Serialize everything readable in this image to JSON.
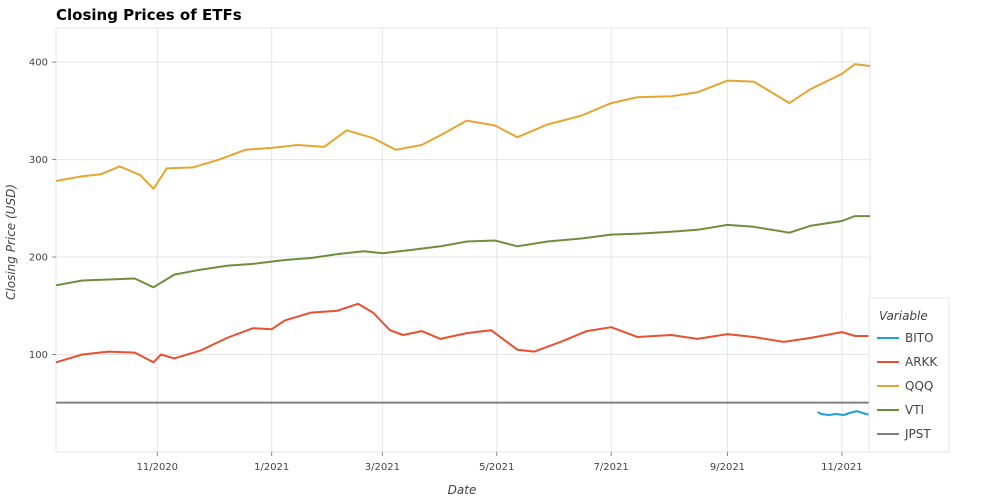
{
  "chart_data": {
    "type": "line",
    "title": "Closing Prices of ETFs",
    "xlabel": "Date",
    "ylabel": "Closing Price (USD)",
    "grid": true,
    "xlim": [
      "2020-09-08",
      "2021-11-16"
    ],
    "ylim": [
      0,
      435
    ],
    "x_ticks": [
      {
        "date": "2020-11-01",
        "label": "11/2020"
      },
      {
        "date": "2021-01-01",
        "label": "1/2021"
      },
      {
        "date": "2021-03-01",
        "label": "3/2021"
      },
      {
        "date": "2021-05-01",
        "label": "5/2021"
      },
      {
        "date": "2021-07-01",
        "label": "7/2021"
      },
      {
        "date": "2021-09-01",
        "label": "9/2021"
      },
      {
        "date": "2021-11-01",
        "label": "11/2021"
      }
    ],
    "y_ticks": [
      100,
      200,
      300,
      400
    ],
    "legend": {
      "title": "Variable",
      "placement": "bottom-right"
    },
    "series": [
      {
        "name": "BITO",
        "color": "#1f9fd8",
        "points": [
          [
            "2021-10-19",
            41
          ],
          [
            "2021-10-21",
            39
          ],
          [
            "2021-10-25",
            38
          ],
          [
            "2021-10-29",
            39
          ],
          [
            "2021-11-02",
            38
          ],
          [
            "2021-11-05",
            40
          ],
          [
            "2021-11-09",
            42
          ],
          [
            "2021-11-12",
            40
          ],
          [
            "2021-11-16",
            38
          ]
        ]
      },
      {
        "name": "ARKK",
        "color": "#e8502f",
        "points": [
          [
            "2020-09-08",
            92
          ],
          [
            "2020-09-22",
            100
          ],
          [
            "2020-10-06",
            103
          ],
          [
            "2020-10-20",
            102
          ],
          [
            "2020-10-30",
            92
          ],
          [
            "2020-11-03",
            100
          ],
          [
            "2020-11-10",
            96
          ],
          [
            "2020-11-24",
            104
          ],
          [
            "2020-12-08",
            117
          ],
          [
            "2020-12-22",
            127
          ],
          [
            "2021-01-01",
            126
          ],
          [
            "2021-01-08",
            135
          ],
          [
            "2021-01-22",
            143
          ],
          [
            "2021-02-05",
            145
          ],
          [
            "2021-02-16",
            152
          ],
          [
            "2021-02-24",
            143
          ],
          [
            "2021-03-05",
            125
          ],
          [
            "2021-03-12",
            120
          ],
          [
            "2021-03-22",
            124
          ],
          [
            "2021-04-01",
            116
          ],
          [
            "2021-04-15",
            122
          ],
          [
            "2021-04-28",
            125
          ],
          [
            "2021-05-12",
            105
          ],
          [
            "2021-05-21",
            103
          ],
          [
            "2021-06-04",
            113
          ],
          [
            "2021-06-18",
            124
          ],
          [
            "2021-07-01",
            128
          ],
          [
            "2021-07-15",
            118
          ],
          [
            "2021-08-02",
            120
          ],
          [
            "2021-08-16",
            116
          ],
          [
            "2021-09-01",
            121
          ],
          [
            "2021-09-15",
            118
          ],
          [
            "2021-10-01",
            113
          ],
          [
            "2021-10-15",
            117
          ],
          [
            "2021-11-01",
            123
          ],
          [
            "2021-11-08",
            119
          ],
          [
            "2021-11-16",
            119
          ]
        ]
      },
      {
        "name": "QQQ",
        "color": "#e4a630",
        "points": [
          [
            "2020-09-08",
            278
          ],
          [
            "2020-09-22",
            283
          ],
          [
            "2020-10-02",
            285
          ],
          [
            "2020-10-12",
            293
          ],
          [
            "2020-10-23",
            284
          ],
          [
            "2020-10-30",
            270
          ],
          [
            "2020-11-06",
            291
          ],
          [
            "2020-11-20",
            292
          ],
          [
            "2020-12-04",
            300
          ],
          [
            "2020-12-18",
            310
          ],
          [
            "2021-01-01",
            312
          ],
          [
            "2021-01-15",
            315
          ],
          [
            "2021-01-29",
            313
          ],
          [
            "2021-02-10",
            330
          ],
          [
            "2021-02-24",
            322
          ],
          [
            "2021-03-08",
            310
          ],
          [
            "2021-03-22",
            315
          ],
          [
            "2021-04-01",
            325
          ],
          [
            "2021-04-15",
            340
          ],
          [
            "2021-04-30",
            335
          ],
          [
            "2021-05-12",
            323
          ],
          [
            "2021-05-28",
            336
          ],
          [
            "2021-06-15",
            345
          ],
          [
            "2021-07-01",
            358
          ],
          [
            "2021-07-15",
            364
          ],
          [
            "2021-08-02",
            365
          ],
          [
            "2021-08-16",
            369
          ],
          [
            "2021-09-01",
            381
          ],
          [
            "2021-09-15",
            380
          ],
          [
            "2021-10-04",
            358
          ],
          [
            "2021-10-15",
            372
          ],
          [
            "2021-11-01",
            388
          ],
          [
            "2021-11-08",
            398
          ],
          [
            "2021-11-16",
            396
          ]
        ]
      },
      {
        "name": "VTI",
        "color": "#6d8f3c",
        "points": [
          [
            "2020-09-08",
            171
          ],
          [
            "2020-09-22",
            176
          ],
          [
            "2020-10-06",
            177
          ],
          [
            "2020-10-20",
            178
          ],
          [
            "2020-10-30",
            169
          ],
          [
            "2020-11-10",
            182
          ],
          [
            "2020-11-24",
            187
          ],
          [
            "2020-12-08",
            191
          ],
          [
            "2020-12-22",
            193
          ],
          [
            "2021-01-08",
            197
          ],
          [
            "2021-01-22",
            199
          ],
          [
            "2021-02-05",
            203
          ],
          [
            "2021-02-19",
            206
          ],
          [
            "2021-03-01",
            204
          ],
          [
            "2021-03-15",
            207
          ],
          [
            "2021-04-01",
            211
          ],
          [
            "2021-04-15",
            216
          ],
          [
            "2021-04-30",
            217
          ],
          [
            "2021-05-12",
            211
          ],
          [
            "2021-05-28",
            216
          ],
          [
            "2021-06-15",
            219
          ],
          [
            "2021-07-01",
            223
          ],
          [
            "2021-07-15",
            224
          ],
          [
            "2021-08-02",
            226
          ],
          [
            "2021-08-16",
            228
          ],
          [
            "2021-09-01",
            233
          ],
          [
            "2021-09-15",
            231
          ],
          [
            "2021-10-04",
            225
          ],
          [
            "2021-10-15",
            232
          ],
          [
            "2021-11-01",
            237
          ],
          [
            "2021-11-08",
            242
          ],
          [
            "2021-11-16",
            242
          ]
        ]
      },
      {
        "name": "JPST",
        "color": "#808080",
        "points": [
          [
            "2020-09-08",
            50.7
          ],
          [
            "2021-01-01",
            50.7
          ],
          [
            "2021-05-01",
            50.7
          ],
          [
            "2021-09-01",
            50.7
          ],
          [
            "2021-11-16",
            50.7
          ]
        ]
      }
    ]
  }
}
